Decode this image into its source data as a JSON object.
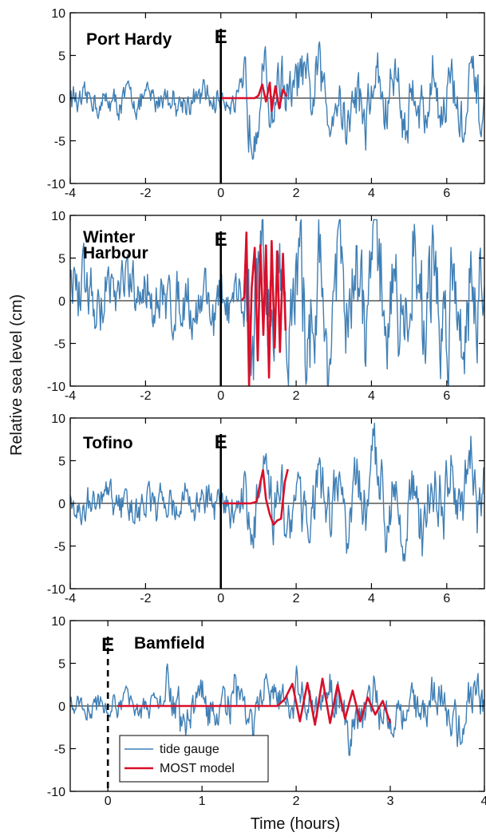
{
  "figure": {
    "ylabel": "Relative sea level (cm)",
    "xlabel": "Time (hours)",
    "event_marker": "E",
    "legend": [
      "tide gauge",
      "MOST model"
    ]
  },
  "colors": {
    "tide_gauge": "#3f7fb5",
    "most_model": "#d8102a",
    "axis": "#000000"
  },
  "chart_data": [
    {
      "type": "line",
      "station": "Port Hardy",
      "xlim": [
        -4,
        7
      ],
      "ylim": [
        -10,
        10
      ],
      "xticks": [
        "-4",
        "-2",
        "0",
        "2",
        "4",
        "6"
      ],
      "yticks": [
        "10",
        "5",
        "0",
        "-5",
        "-10"
      ],
      "event_time": 0,
      "event_line": "solid",
      "series": [
        {
          "key": "tide_gauge",
          "amp_before": 1.6,
          "amp_after": 3.5,
          "max": 6.8,
          "min": -7.9
        },
        {
          "key": "most_model",
          "x": [
            0,
            0.9,
            1.0,
            1.1,
            1.2,
            1.3,
            1.35,
            1.45,
            1.55,
            1.65,
            1.75
          ],
          "values": [
            0,
            0,
            0.3,
            1.6,
            -0.4,
            1.8,
            -1.5,
            1.4,
            -1.2,
            1.0,
            0.2
          ]
        }
      ]
    },
    {
      "type": "line",
      "station": "Winter Harbour",
      "station_lines": [
        "Winter",
        "Harbour"
      ],
      "xlim": [
        -4,
        7
      ],
      "ylim": [
        -10,
        10
      ],
      "xticks": [
        "-4",
        "-2",
        "0",
        "2",
        "4",
        "6"
      ],
      "yticks": [
        "10",
        "5",
        "0",
        "-5",
        "-10"
      ],
      "event_time": 0,
      "event_line": "solid",
      "series": [
        {
          "key": "tide_gauge",
          "amp_before": 3.3,
          "amp_after": 6.5,
          "max": 9.5,
          "min": -10
        },
        {
          "key": "most_model",
          "x": [
            0.55,
            0.62,
            0.68,
            0.75,
            0.82,
            0.9,
            0.98,
            1.05,
            1.13,
            1.2,
            1.28,
            1.35,
            1.43,
            1.5,
            1.57,
            1.65,
            1.72
          ],
          "values": [
            0,
            0.4,
            8.0,
            -10,
            1.5,
            6.2,
            -7.0,
            6.5,
            -4.0,
            6.5,
            -9.0,
            7.0,
            -5.5,
            5.8,
            -6.0,
            5.5,
            -3.5
          ]
        }
      ]
    },
    {
      "type": "line",
      "station": "Tofino",
      "xlim": [
        -4,
        7
      ],
      "ylim": [
        -10,
        10
      ],
      "xticks": [
        "-4",
        "-2",
        "0",
        "2",
        "4",
        "6"
      ],
      "yticks": [
        "10",
        "5",
        "0",
        "-5",
        "-10"
      ],
      "event_time": 0,
      "event_line": "solid",
      "series": [
        {
          "key": "tide_gauge",
          "amp_before": 2.0,
          "amp_after": 3.8,
          "max": 10,
          "min": -8.2
        },
        {
          "key": "most_model",
          "x": [
            0.05,
            0.8,
            0.95,
            1.05,
            1.12,
            1.2,
            1.3,
            1.4,
            1.5,
            1.6,
            1.7,
            1.78
          ],
          "values": [
            0,
            0,
            0.2,
            2.5,
            3.9,
            0.5,
            -1.3,
            -2.5,
            -2.0,
            -1.8,
            2.5,
            4.0
          ]
        }
      ]
    },
    {
      "type": "line",
      "station": "Bamfield",
      "xlim": [
        -0.4,
        4
      ],
      "ylim": [
        -10,
        10
      ],
      "xticks": [
        "0",
        "1",
        "2",
        "3",
        "4"
      ],
      "yticks": [
        "10",
        "5",
        "0",
        "-5",
        "-10"
      ],
      "event_time": 0,
      "event_line": "dashed",
      "series": [
        {
          "key": "tide_gauge",
          "amp_before": 1.3,
          "amp_after": 2.5,
          "max": 5.2,
          "min": -6.3
        },
        {
          "key": "most_model",
          "x": [
            0.1,
            1.8,
            1.88,
            1.96,
            2.04,
            2.12,
            2.2,
            2.28,
            2.36,
            2.44,
            2.52,
            2.6,
            2.68,
            2.76,
            2.84,
            2.92,
            3.0
          ],
          "values": [
            0,
            0,
            0.8,
            2.6,
            -1.8,
            2.7,
            -2.2,
            3.2,
            -2.0,
            2.5,
            -1.5,
            1.8,
            -1.8,
            1.0,
            -1.0,
            0.6,
            -2.0
          ]
        }
      ]
    }
  ]
}
